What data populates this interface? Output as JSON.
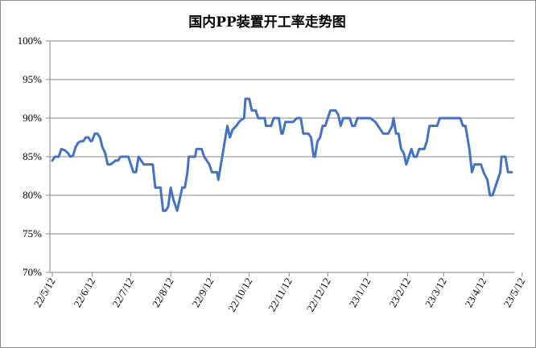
{
  "chart_data": {
    "type": "line",
    "title": "国内PP装置开工率走势图",
    "xlabel": "",
    "ylabel": "",
    "ylim": [
      70,
      100
    ],
    "y_ticks": [
      "70%",
      "75%",
      "80%",
      "85%",
      "90%",
      "95%",
      "100%"
    ],
    "x_ticks": [
      "22/5/12",
      "22/6/12",
      "22/7/12",
      "22/8/12",
      "22/9/12",
      "22/10/12",
      "22/11/12",
      "22/12/12",
      "23/1/12",
      "23/2/12",
      "23/3/12",
      "23/4/12",
      "23/5/12"
    ],
    "grid": "horizontal",
    "legend": "none",
    "line_color": "#4472c4",
    "series": [
      {
        "values": [
          [
            "2022-05-12",
            84.5
          ],
          [
            "2022-05-14",
            85
          ],
          [
            "2022-05-17",
            85
          ],
          [
            "2022-05-19",
            86
          ],
          [
            "2022-05-22",
            85.8
          ],
          [
            "2022-05-24",
            85.5
          ],
          [
            "2022-05-26",
            85
          ],
          [
            "2022-05-28",
            85.1
          ],
          [
            "2022-05-30",
            86.2
          ],
          [
            "2022-06-01",
            86.8
          ],
          [
            "2022-06-03",
            87
          ],
          [
            "2022-06-05",
            87
          ],
          [
            "2022-06-07",
            87.5
          ],
          [
            "2022-06-09",
            87.5
          ],
          [
            "2022-06-11",
            87
          ],
          [
            "2022-06-12",
            87.1
          ],
          [
            "2022-06-14",
            88
          ],
          [
            "2022-06-16",
            88
          ],
          [
            "2022-06-18",
            87.5
          ],
          [
            "2022-06-20",
            86.2
          ],
          [
            "2022-06-22",
            85.5
          ],
          [
            "2022-06-24",
            84
          ],
          [
            "2022-06-26",
            84
          ],
          [
            "2022-06-28",
            84.2
          ],
          [
            "2022-06-30",
            84.5
          ],
          [
            "2022-07-02",
            84.5
          ],
          [
            "2022-07-04",
            85
          ],
          [
            "2022-07-06",
            85
          ],
          [
            "2022-07-08",
            85
          ],
          [
            "2022-07-10",
            85
          ],
          [
            "2022-07-11",
            84.5
          ],
          [
            "2022-07-12",
            84
          ],
          [
            "2022-07-14",
            83
          ],
          [
            "2022-07-16",
            83
          ],
          [
            "2022-07-18",
            85
          ],
          [
            "2022-07-20",
            84.5
          ],
          [
            "2022-07-22",
            84
          ],
          [
            "2022-07-25",
            84
          ],
          [
            "2022-07-27",
            84
          ],
          [
            "2022-07-29",
            84
          ],
          [
            "2022-07-31",
            81
          ],
          [
            "2022-08-02",
            81
          ],
          [
            "2022-08-04",
            81
          ],
          [
            "2022-08-05",
            79.5
          ],
          [
            "2022-08-06",
            78
          ],
          [
            "2022-08-08",
            78
          ],
          [
            "2022-08-10",
            78.5
          ],
          [
            "2022-08-12",
            81
          ],
          [
            "2022-08-14",
            79.5
          ],
          [
            "2022-08-16",
            78.5
          ],
          [
            "2022-08-17",
            78
          ],
          [
            "2022-08-19",
            79.5
          ],
          [
            "2022-08-21",
            81
          ],
          [
            "2022-08-23",
            81
          ],
          [
            "2022-08-25",
            83
          ],
          [
            "2022-08-26",
            85
          ],
          [
            "2022-08-29",
            85
          ],
          [
            "2022-08-31",
            85
          ],
          [
            "2022-09-01",
            86
          ],
          [
            "2022-09-05",
            86
          ],
          [
            "2022-09-07",
            85
          ],
          [
            "2022-09-09",
            84.5
          ],
          [
            "2022-09-11",
            84
          ],
          [
            "2022-09-13",
            83
          ],
          [
            "2022-09-15",
            83
          ],
          [
            "2022-09-17",
            83
          ],
          [
            "2022-09-18",
            82
          ],
          [
            "2022-09-20",
            84
          ],
          [
            "2022-09-23",
            87
          ],
          [
            "2022-09-25",
            89
          ],
          [
            "2022-09-27",
            87.5
          ],
          [
            "2022-09-29",
            88.5
          ],
          [
            "2022-10-02",
            89
          ],
          [
            "2022-10-04",
            89.5
          ],
          [
            "2022-10-06",
            89.8
          ],
          [
            "2022-10-08",
            90
          ],
          [
            "2022-10-09",
            92.5
          ],
          [
            "2022-10-12",
            92.5
          ],
          [
            "2022-10-14",
            91
          ],
          [
            "2022-10-17",
            91
          ],
          [
            "2022-10-19",
            90
          ],
          [
            "2022-10-22",
            90
          ],
          [
            "2022-10-24",
            90
          ],
          [
            "2022-10-25",
            89
          ],
          [
            "2022-10-29",
            89
          ],
          [
            "2022-10-31",
            90
          ],
          [
            "2022-11-04",
            90
          ],
          [
            "2022-11-06",
            88
          ],
          [
            "2022-11-07",
            88
          ],
          [
            "2022-11-09",
            89.5
          ],
          [
            "2022-11-12",
            89.5
          ],
          [
            "2022-11-15",
            89.5
          ],
          [
            "2022-11-18",
            90
          ],
          [
            "2022-11-21",
            90
          ],
          [
            "2022-11-23",
            88
          ],
          [
            "2022-11-27",
            88
          ],
          [
            "2022-11-29",
            87.5
          ],
          [
            "2022-12-01",
            85
          ],
          [
            "2022-12-02",
            85
          ],
          [
            "2022-12-04",
            87
          ],
          [
            "2022-12-06",
            87.5
          ],
          [
            "2022-12-08",
            89
          ],
          [
            "2022-12-10",
            89
          ],
          [
            "2022-12-12",
            90
          ],
          [
            "2022-12-14",
            91
          ],
          [
            "2022-12-18",
            91
          ],
          [
            "2022-12-20",
            90.5
          ],
          [
            "2022-12-22",
            89
          ],
          [
            "2022-12-24",
            90
          ],
          [
            "2022-12-29",
            90
          ],
          [
            "2022-12-31",
            89
          ],
          [
            "2023-01-02",
            89
          ],
          [
            "2023-01-04",
            90
          ],
          [
            "2023-01-14",
            90
          ],
          [
            "2023-01-18",
            89.5
          ],
          [
            "2023-01-20",
            89
          ],
          [
            "2023-01-24",
            88
          ],
          [
            "2023-01-28",
            88
          ],
          [
            "2023-01-31",
            89
          ],
          [
            "2023-02-01",
            90
          ],
          [
            "2023-02-03",
            88
          ],
          [
            "2023-02-05",
            88
          ],
          [
            "2023-02-07",
            86
          ],
          [
            "2023-02-09",
            85.5
          ],
          [
            "2023-02-11",
            84
          ],
          [
            "2023-02-13",
            85
          ],
          [
            "2023-02-15",
            86
          ],
          [
            "2023-02-17",
            85
          ],
          [
            "2023-02-19",
            85
          ],
          [
            "2023-02-21",
            86
          ],
          [
            "2023-02-25",
            86
          ],
          [
            "2023-02-27",
            87
          ],
          [
            "2023-03-01",
            89
          ],
          [
            "2023-03-07",
            89
          ],
          [
            "2023-03-09",
            90
          ],
          [
            "2023-03-25",
            90
          ],
          [
            "2023-03-27",
            89
          ],
          [
            "2023-03-29",
            89
          ],
          [
            "2023-04-01",
            86
          ],
          [
            "2023-04-03",
            83
          ],
          [
            "2023-04-05",
            84
          ],
          [
            "2023-04-10",
            84
          ],
          [
            "2023-04-12",
            83
          ],
          [
            "2023-04-15",
            82
          ],
          [
            "2023-04-17",
            80
          ],
          [
            "2023-04-19",
            80
          ],
          [
            "2023-04-21",
            81
          ],
          [
            "2023-04-25",
            83
          ],
          [
            "2023-04-26",
            85
          ],
          [
            "2023-04-29",
            85
          ],
          [
            "2023-05-01",
            83
          ],
          [
            "2023-05-04",
            83
          ]
        ]
      }
    ]
  }
}
